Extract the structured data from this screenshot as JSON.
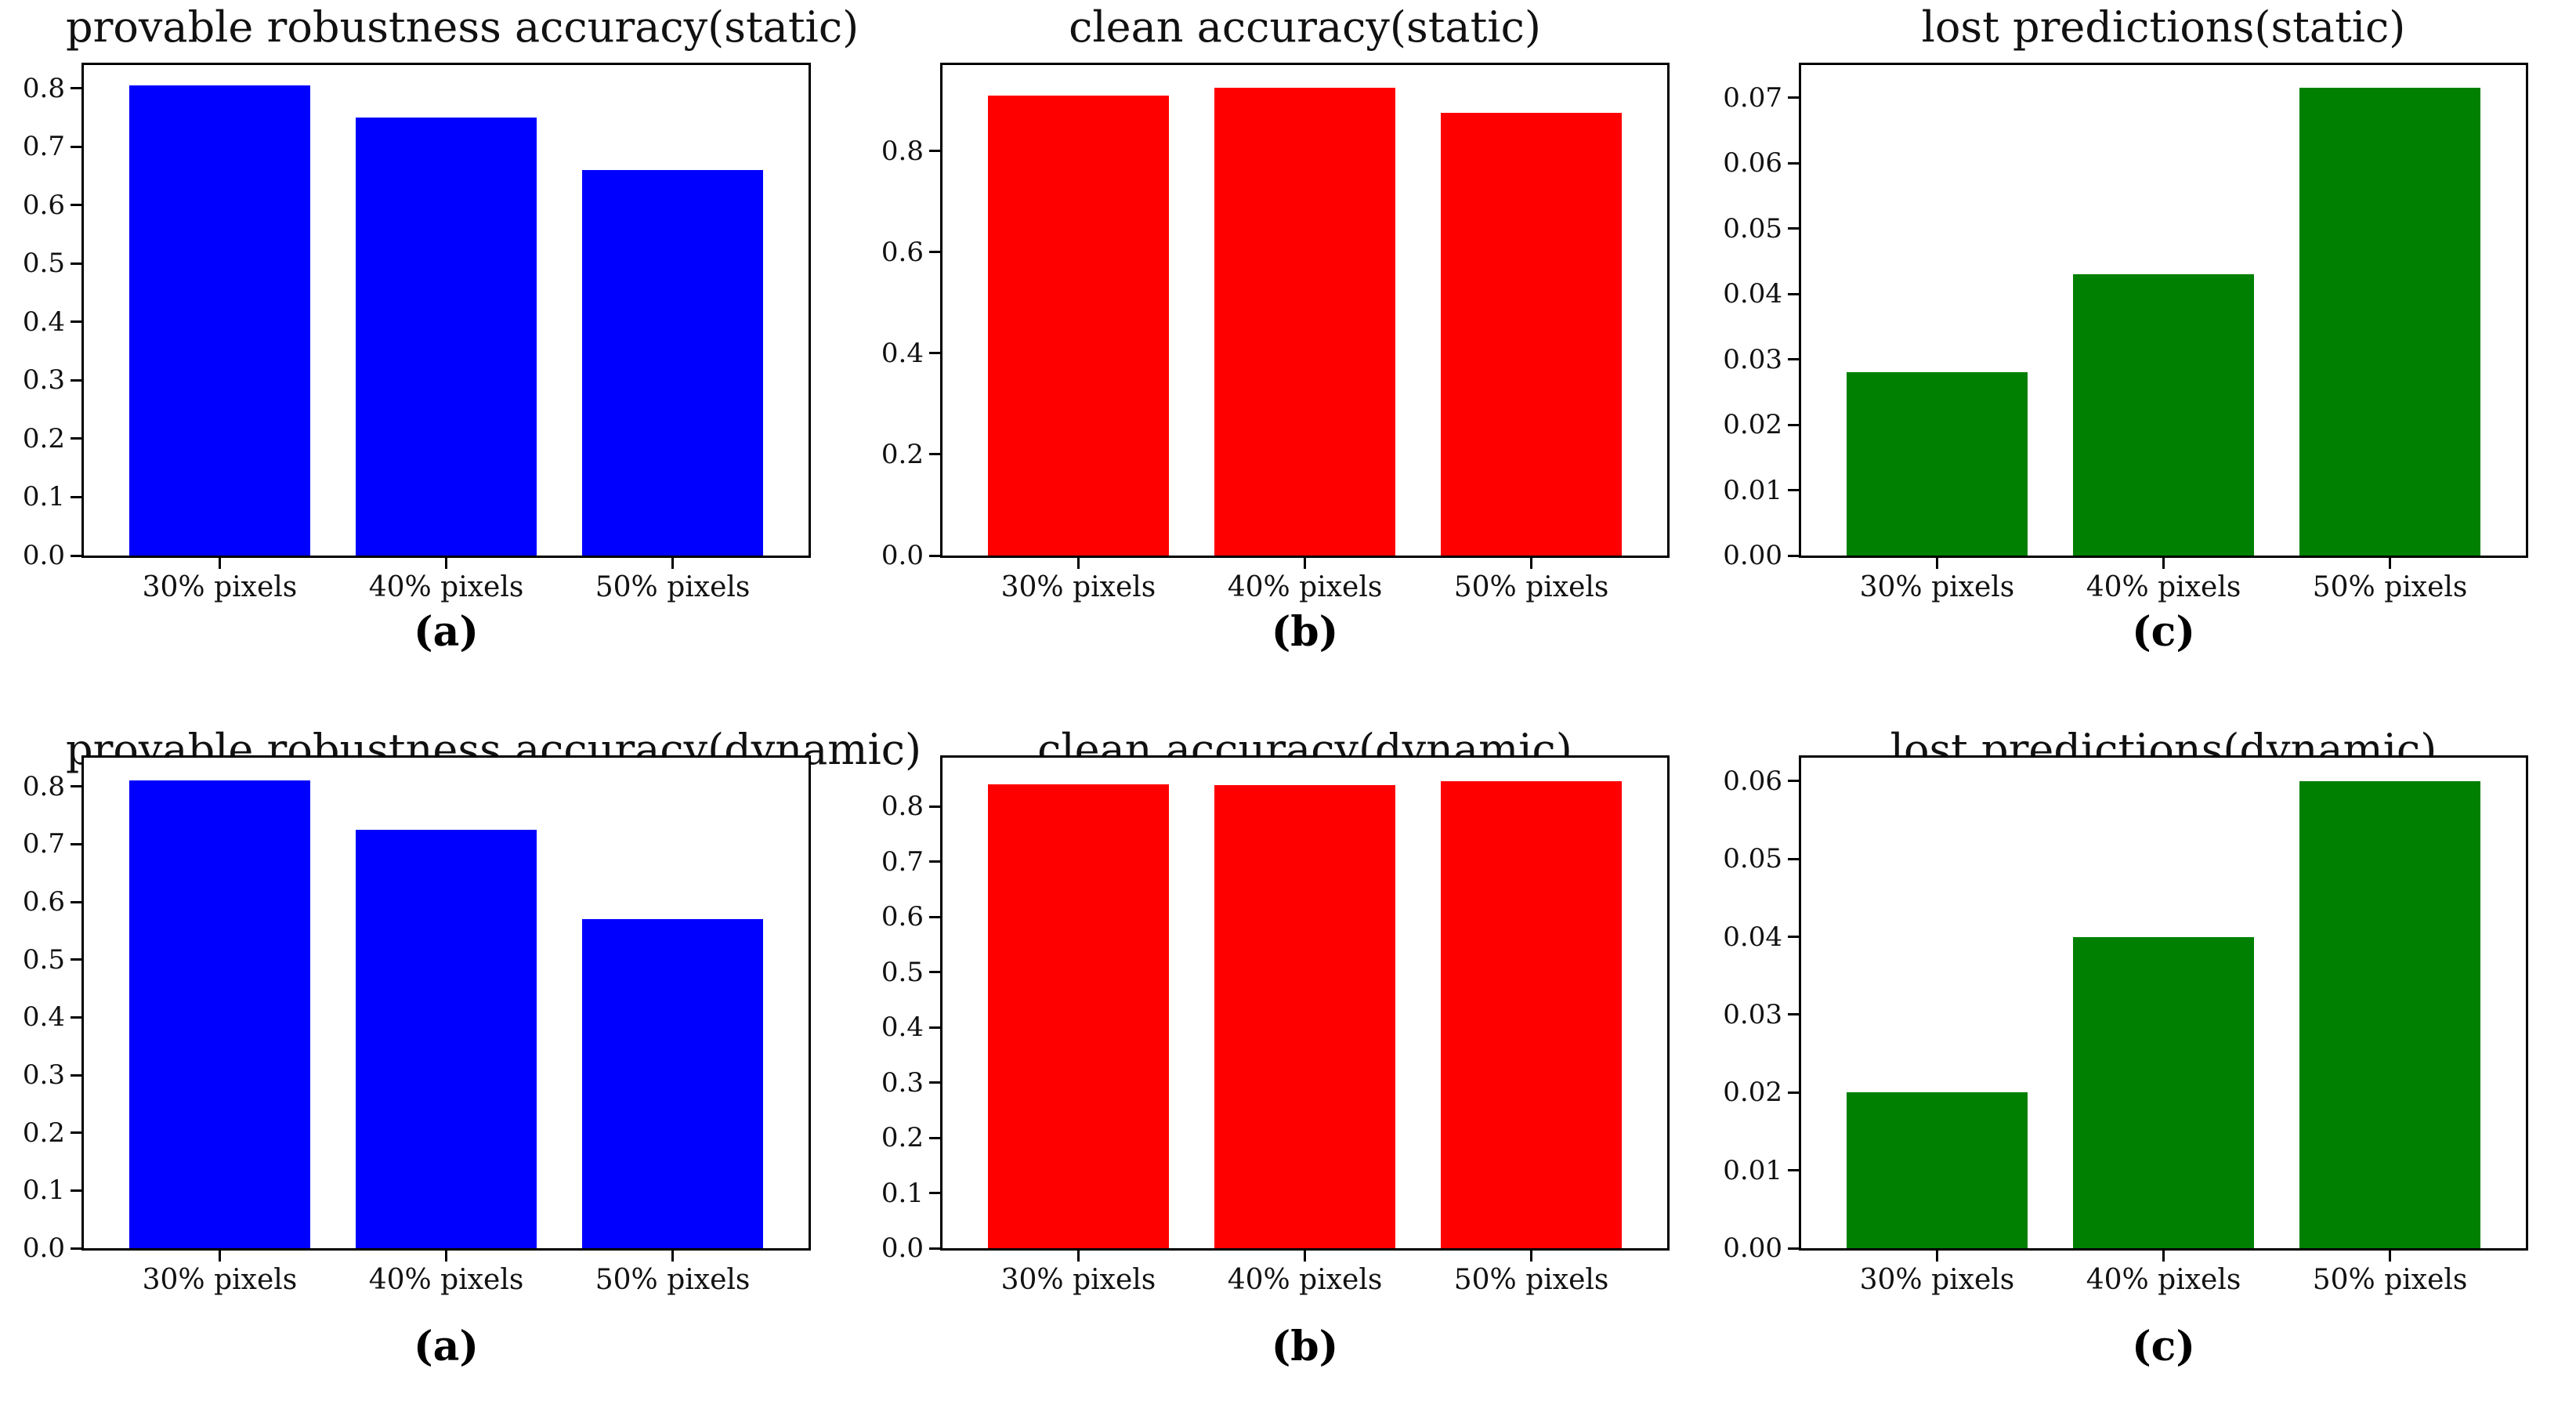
{
  "figure": {
    "background": "#ffffff",
    "axis_color": "#000000",
    "text_color": "#111111",
    "layout": "2 rows x 3 columns of bar charts",
    "row_labels": [
      "static",
      "dynamic"
    ]
  },
  "chart_data": [
    {
      "type": "bar",
      "title": "provable robustness accuracy(static)",
      "caption": "(a)",
      "bar_color": "#0000ff",
      "categories": [
        "30% pixels",
        "40% pixels",
        "50% pixels"
      ],
      "values": [
        0.805,
        0.75,
        0.66
      ],
      "xlabel": "",
      "ylabel": "",
      "ylim": [
        0,
        0.84
      ],
      "yticks": [
        0.0,
        0.1,
        0.2,
        0.3,
        0.4,
        0.5,
        0.6,
        0.7,
        0.8
      ],
      "ytick_labels": [
        "0.0",
        "0.1",
        "0.2",
        "0.3",
        "0.4",
        "0.5",
        "0.6",
        "0.7",
        "0.8"
      ],
      "grid": false,
      "legend": null
    },
    {
      "type": "bar",
      "title": "clean accuracy(static)",
      "caption": "(b)",
      "bar_color": "#ff0000",
      "categories": [
        "30% pixels",
        "40% pixels",
        "50% pixels"
      ],
      "values": [
        0.91,
        0.925,
        0.875
      ],
      "xlabel": "",
      "ylabel": "",
      "ylim": [
        0,
        0.97
      ],
      "yticks": [
        0.0,
        0.2,
        0.4,
        0.6,
        0.8
      ],
      "ytick_labels": [
        "0.0",
        "0.2",
        "0.4",
        "0.6",
        "0.8"
      ],
      "grid": false,
      "legend": null
    },
    {
      "type": "bar",
      "title": "lost predictions(static)",
      "caption": "(c)",
      "bar_color": "#008000",
      "categories": [
        "30% pixels",
        "40% pixels",
        "50% pixels"
      ],
      "values": [
        0.028,
        0.043,
        0.0715
      ],
      "xlabel": "",
      "ylabel": "",
      "ylim": [
        0,
        0.075
      ],
      "yticks": [
        0.0,
        0.01,
        0.02,
        0.03,
        0.04,
        0.05,
        0.06,
        0.07
      ],
      "ytick_labels": [
        "0.00",
        "0.01",
        "0.02",
        "0.03",
        "0.04",
        "0.05",
        "0.06",
        "0.07"
      ],
      "grid": false,
      "legend": null
    },
    {
      "type": "bar",
      "title": "provable robustness accuracy(dynamic)",
      "caption": "(a)",
      "bar_color": "#0000ff",
      "categories": [
        "30% pixels",
        "40% pixels",
        "50% pixels"
      ],
      "values": [
        0.81,
        0.725,
        0.57
      ],
      "xlabel": "",
      "ylabel": "",
      "ylim": [
        0,
        0.85
      ],
      "yticks": [
        0.0,
        0.1,
        0.2,
        0.3,
        0.4,
        0.5,
        0.6,
        0.7,
        0.8
      ],
      "ytick_labels": [
        "0.0",
        "0.1",
        "0.2",
        "0.3",
        "0.4",
        "0.5",
        "0.6",
        "0.7",
        "0.8"
      ],
      "grid": false,
      "legend": null
    },
    {
      "type": "bar",
      "title": "clean accuracy(dynamic)",
      "caption": "(b)",
      "bar_color": "#ff0000",
      "categories": [
        "30% pixels",
        "40% pixels",
        "50% pixels"
      ],
      "values": [
        0.84,
        0.838,
        0.845
      ],
      "xlabel": "",
      "ylabel": "",
      "ylim": [
        0,
        0.888
      ],
      "yticks": [
        0.0,
        0.1,
        0.2,
        0.3,
        0.4,
        0.5,
        0.6,
        0.7,
        0.8
      ],
      "ytick_labels": [
        "0.0",
        "0.1",
        "0.2",
        "0.3",
        "0.4",
        "0.5",
        "0.6",
        "0.7",
        "0.8"
      ],
      "grid": false,
      "legend": null
    },
    {
      "type": "bar",
      "title": "lost predictions(dynamic)",
      "caption": "(c)",
      "bar_color": "#008000",
      "categories": [
        "30% pixels",
        "40% pixels",
        "50% pixels"
      ],
      "values": [
        0.02,
        0.04,
        0.06
      ],
      "xlabel": "",
      "ylabel": "",
      "ylim": [
        0,
        0.063
      ],
      "yticks": [
        0.0,
        0.01,
        0.02,
        0.03,
        0.04,
        0.05,
        0.06
      ],
      "ytick_labels": [
        "0.00",
        "0.01",
        "0.02",
        "0.03",
        "0.04",
        "0.05",
        "0.06"
      ],
      "grid": false,
      "legend": null
    }
  ]
}
